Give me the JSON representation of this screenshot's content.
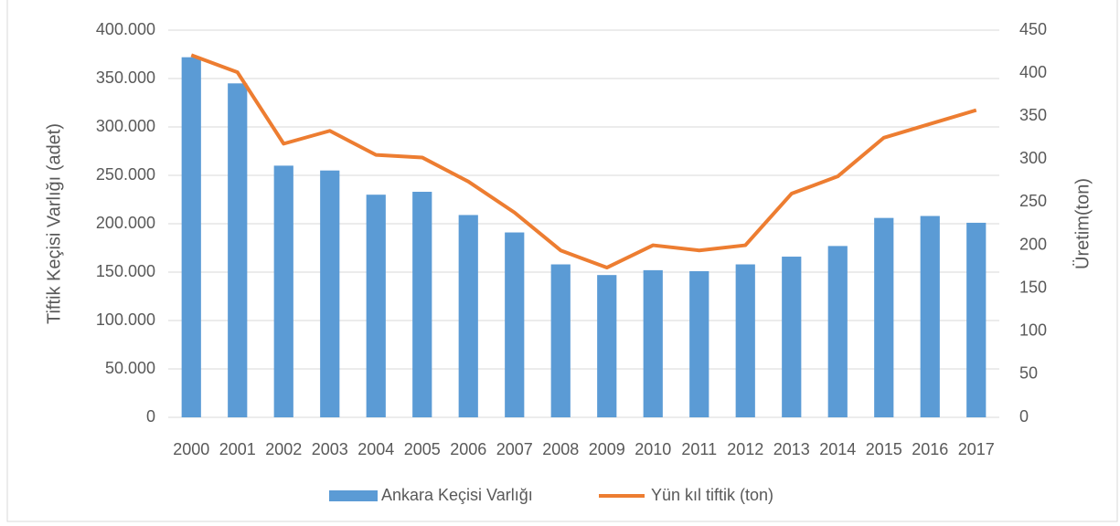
{
  "chart_data": {
    "type": "bar_line",
    "categories": [
      "2000",
      "2001",
      "2002",
      "2003",
      "2004",
      "2005",
      "2006",
      "2007",
      "2008",
      "2009",
      "2010",
      "2011",
      "2012",
      "2013",
      "2014",
      "2015",
      "2016",
      "2017"
    ],
    "y_label": "Tiftik Keçisi Varlığı (adet)",
    "y2_label": "Üretim(ton)",
    "series": [
      {
        "name": "Ankara Keçisi Varlığı",
        "type": "bar",
        "color": "#5b9bd5",
        "values": [
          372000,
          345000,
          260000,
          255000,
          230000,
          233000,
          209000,
          191000,
          158000,
          147000,
          152000,
          151000,
          158000,
          166000,
          177000,
          206000,
          208000,
          201000
        ]
      },
      {
        "name": "Yün kıl tiftik (ton)",
        "type": "line",
        "axis": "y2",
        "color": "#ed7d31",
        "values": [
          421,
          401,
          318,
          333,
          305,
          302,
          274,
          238,
          194,
          174,
          200,
          194,
          200,
          260,
          280,
          325,
          341,
          357
        ]
      }
    ],
    "ylim": [
      0,
      400000
    ],
    "yticks": [
      0,
      {
        "value": 50000,
        "label": "50.000"
      },
      {
        "value": 100000,
        "label": "100.000"
      },
      {
        "value": 150000,
        "label": "150.000"
      },
      {
        "value": 200000,
        "label": "200.000"
      },
      {
        "value": 250000,
        "label": "250.000"
      },
      {
        "value": 300000,
        "label": "300.000"
      },
      {
        "value": 350000,
        "label": "350.000"
      },
      {
        "value": 400000,
        "label": "400.000"
      }
    ],
    "y2lim": [
      0,
      450
    ],
    "y2ticks": [
      0,
      50,
      100,
      150,
      200,
      250,
      300,
      350,
      400,
      450
    ],
    "grid": true,
    "legend": "bottom"
  }
}
